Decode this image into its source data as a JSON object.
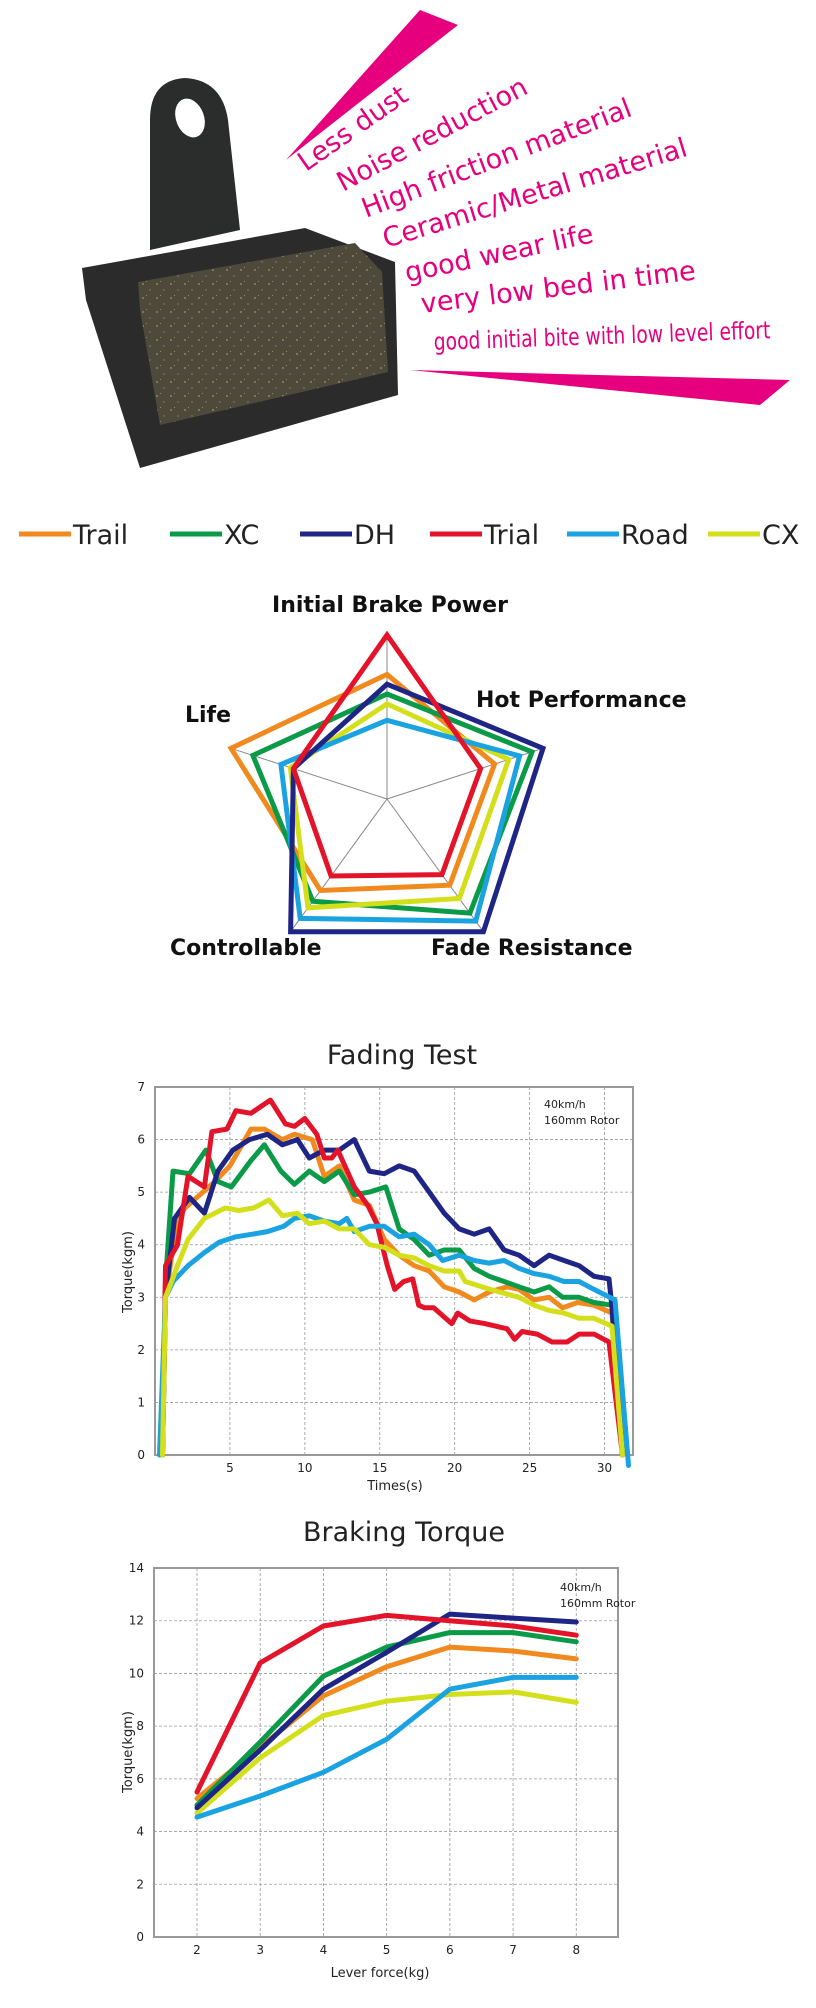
{
  "features": [
    "Less dust",
    "Noise reduction",
    "High friction material",
    "Ceramic/Metal material",
    "good wear life",
    "very low bed in time",
    "good initial bite with low level effort"
  ],
  "accent_color": "#e6007e",
  "legend": [
    {
      "name": "Trail",
      "color": "#f08a1e"
    },
    {
      "name": "XC",
      "color": "#0a9a48"
    },
    {
      "name": "DH",
      "color": "#1e2585"
    },
    {
      "name": "Trial",
      "color": "#e3132a"
    },
    {
      "name": "Road",
      "color": "#1aa3e0"
    },
    {
      "name": "CX",
      "color": "#d4df1c"
    }
  ],
  "chart_data": [
    {
      "type": "radar",
      "axes": [
        "Initial Brake Power",
        "Hot Performance",
        "Fade Resistance",
        "Controllable",
        "Life"
      ],
      "range": [
        0,
        1
      ],
      "series": [
        {
          "name": "Trail",
          "values": [
            0.76,
            0.69,
            0.65,
            0.69,
            1.0
          ]
        },
        {
          "name": "XC",
          "values": [
            0.64,
            0.93,
            0.86,
            0.77,
            0.86
          ]
        },
        {
          "name": "DH",
          "values": [
            0.7,
            1.0,
            1.0,
            1.0,
            0.6
          ]
        },
        {
          "name": "Trial",
          "values": [
            1.0,
            0.6,
            0.57,
            0.58,
            0.6
          ]
        },
        {
          "name": "Road",
          "values": [
            0.48,
            0.85,
            0.92,
            0.9,
            0.68
          ]
        },
        {
          "name": "CX",
          "values": [
            0.58,
            0.78,
            0.75,
            0.82,
            0.62
          ]
        }
      ]
    },
    {
      "type": "line",
      "title": "Fading Test",
      "xlabel": "Times(s)",
      "ylabel": "Torque(kgm)",
      "annotation": [
        "40km/h",
        "160mm Rotor"
      ],
      "xlim": [
        0,
        31.9
      ],
      "ylim": [
        0,
        7
      ],
      "xticks": [
        5,
        10,
        15,
        20,
        25,
        30
      ],
      "yticks": [
        0,
        1,
        2,
        3,
        4,
        5,
        6,
        7
      ],
      "grid": true,
      "series": [
        {
          "name": "Trail",
          "points": [
            [
              0.5,
              0
            ],
            [
              0.7,
              3
            ],
            [
              1.5,
              4.5
            ],
            [
              2,
              4.7
            ],
            [
              3.4,
              5.05
            ],
            [
              4,
              5.2
            ],
            [
              5,
              5.5
            ],
            [
              6.4,
              6.2
            ],
            [
              7.3,
              6.2
            ],
            [
              8.5,
              6.0
            ],
            [
              9.3,
              6.1
            ],
            [
              10.5,
              6.0
            ],
            [
              11.3,
              5.3
            ],
            [
              12.3,
              5.5
            ],
            [
              13.3,
              4.85
            ],
            [
              14.3,
              4.75
            ],
            [
              15.3,
              4.1
            ],
            [
              16.3,
              3.8
            ],
            [
              17.3,
              3.6
            ],
            [
              18.3,
              3.5
            ],
            [
              19.3,
              3.2
            ],
            [
              20.3,
              3.1
            ],
            [
              21.3,
              2.95
            ],
            [
              22.3,
              3.1
            ],
            [
              23.5,
              3.2
            ],
            [
              24.3,
              3.15
            ],
            [
              25.3,
              2.95
            ],
            [
              26.3,
              3.0
            ],
            [
              27.2,
              2.8
            ],
            [
              28.2,
              2.9
            ],
            [
              29.3,
              2.85
            ],
            [
              30.5,
              2.7
            ],
            [
              31.2,
              0
            ]
          ]
        },
        {
          "name": "XC",
          "points": [
            [
              0.5,
              0
            ],
            [
              0.7,
              3.3
            ],
            [
              1.2,
              5.4
            ],
            [
              2.3,
              5.35
            ],
            [
              3.4,
              5.8
            ],
            [
              4.2,
              5.2
            ],
            [
              5.1,
              5.1
            ],
            [
              6.4,
              5.6
            ],
            [
              7.3,
              5.9
            ],
            [
              8.4,
              5.4
            ],
            [
              9.3,
              5.15
            ],
            [
              10.3,
              5.4
            ],
            [
              11.3,
              5.2
            ],
            [
              12.3,
              5.4
            ],
            [
              13.3,
              4.95
            ],
            [
              14.3,
              5.0
            ],
            [
              15.4,
              5.1
            ],
            [
              16.3,
              4.3
            ],
            [
              17.3,
              4.1
            ],
            [
              18.3,
              3.8
            ],
            [
              19.3,
              3.9
            ],
            [
              20.3,
              3.9
            ],
            [
              21.3,
              3.55
            ],
            [
              22.3,
              3.4
            ],
            [
              23.3,
              3.3
            ],
            [
              24.3,
              3.2
            ],
            [
              25.3,
              3.1
            ],
            [
              26.3,
              3.2
            ],
            [
              27.2,
              3.0
            ],
            [
              28.3,
              3.0
            ],
            [
              29.3,
              2.9
            ],
            [
              30.5,
              2.85
            ],
            [
              31.2,
              0
            ]
          ]
        },
        {
          "name": "DH",
          "points": [
            [
              0.5,
              0
            ],
            [
              0.7,
              3.0
            ],
            [
              1.3,
              4.5
            ],
            [
              2.3,
              4.9
            ],
            [
              3.3,
              4.6
            ],
            [
              4.2,
              5.4
            ],
            [
              5.2,
              5.8
            ],
            [
              6.3,
              6.0
            ],
            [
              7.5,
              6.1
            ],
            [
              8.5,
              5.9
            ],
            [
              9.5,
              6.0
            ],
            [
              10.3,
              5.65
            ],
            [
              11.3,
              5.8
            ],
            [
              12.3,
              5.8
            ],
            [
              13.3,
              6.0
            ],
            [
              14.3,
              5.4
            ],
            [
              15.3,
              5.35
            ],
            [
              16.3,
              5.5
            ],
            [
              17.3,
              5.4
            ],
            [
              18.3,
              5.0
            ],
            [
              19.3,
              4.6
            ],
            [
              20.3,
              4.3
            ],
            [
              21.3,
              4.2
            ],
            [
              22.3,
              4.3
            ],
            [
              23.3,
              3.9
            ],
            [
              24.3,
              3.8
            ],
            [
              25.3,
              3.6
            ],
            [
              26.3,
              3.8
            ],
            [
              27.3,
              3.7
            ],
            [
              28.3,
              3.6
            ],
            [
              29.3,
              3.4
            ],
            [
              30.3,
              3.35
            ],
            [
              30.5,
              2.8
            ],
            [
              31.2,
              0
            ]
          ]
        },
        {
          "name": "Trial",
          "points": [
            [
              0.5,
              0
            ],
            [
              0.7,
              3.6
            ],
            [
              1.5,
              4.0
            ],
            [
              2.2,
              5.3
            ],
            [
              3.3,
              5.1
            ],
            [
              3.8,
              6.15
            ],
            [
              4.8,
              6.2
            ],
            [
              5.4,
              6.55
            ],
            [
              6.4,
              6.5
            ],
            [
              7.7,
              6.75
            ],
            [
              8.7,
              6.3
            ],
            [
              9.3,
              6.25
            ],
            [
              10.0,
              6.4
            ],
            [
              10.8,
              6.1
            ],
            [
              11.3,
              5.65
            ],
            [
              11.8,
              5.65
            ],
            [
              12.2,
              5.8
            ],
            [
              13.3,
              5.1
            ],
            [
              14.2,
              4.75
            ],
            [
              14.8,
              4.4
            ],
            [
              15.5,
              3.6
            ],
            [
              16,
              3.15
            ],
            [
              16.6,
              3.3
            ],
            [
              17.2,
              3.35
            ],
            [
              17.6,
              2.85
            ],
            [
              18,
              2.8
            ],
            [
              18.6,
              2.8
            ],
            [
              19.8,
              2.5
            ],
            [
              20.2,
              2.7
            ],
            [
              21,
              2.55
            ],
            [
              22,
              2.5
            ],
            [
              23.5,
              2.4
            ],
            [
              24,
              2.2
            ],
            [
              24.5,
              2.35
            ],
            [
              25.5,
              2.3
            ],
            [
              26.5,
              2.15
            ],
            [
              27.5,
              2.15
            ],
            [
              28.3,
              2.3
            ],
            [
              29.3,
              2.3
            ],
            [
              30.3,
              2.15
            ],
            [
              31.2,
              0
            ]
          ]
        },
        {
          "name": "Road",
          "points": [
            [
              0.3,
              0
            ],
            [
              0.7,
              3.0
            ],
            [
              1.2,
              3.3
            ],
            [
              2.2,
              3.6
            ],
            [
              3.3,
              3.85
            ],
            [
              4.3,
              4.05
            ],
            [
              5.4,
              4.15
            ],
            [
              6.5,
              4.2
            ],
            [
              7.5,
              4.25
            ],
            [
              8.6,
              4.35
            ],
            [
              9.3,
              4.5
            ],
            [
              10.3,
              4.55
            ],
            [
              11.3,
              4.45
            ],
            [
              12.3,
              4.4
            ],
            [
              12.8,
              4.5
            ],
            [
              13.3,
              4.25
            ],
            [
              14.3,
              4.35
            ],
            [
              15.3,
              4.35
            ],
            [
              16.3,
              4.15
            ],
            [
              17.3,
              4.2
            ],
            [
              18.3,
              4.0
            ],
            [
              19.2,
              3.7
            ],
            [
              20.3,
              3.8
            ],
            [
              21.3,
              3.7
            ],
            [
              22.3,
              3.65
            ],
            [
              23.3,
              3.7
            ],
            [
              24.3,
              3.55
            ],
            [
              25.3,
              3.45
            ],
            [
              26.3,
              3.4
            ],
            [
              27.3,
              3.3
            ],
            [
              28.3,
              3.3
            ],
            [
              29.3,
              3.15
            ],
            [
              30.7,
              2.95
            ],
            [
              31.6,
              -0.2
            ]
          ]
        },
        {
          "name": "CX",
          "points": [
            [
              0.5,
              0
            ],
            [
              0.7,
              3.0
            ],
            [
              1.5,
              3.6
            ],
            [
              2.2,
              4.1
            ],
            [
              3.3,
              4.5
            ],
            [
              4.7,
              4.7
            ],
            [
              5.6,
              4.65
            ],
            [
              6.6,
              4.7
            ],
            [
              7.6,
              4.85
            ],
            [
              8.5,
              4.55
            ],
            [
              9.5,
              4.6
            ],
            [
              10.3,
              4.4
            ],
            [
              11.3,
              4.45
            ],
            [
              12.3,
              4.3
            ],
            [
              13.3,
              4.3
            ],
            [
              14.3,
              4.0
            ],
            [
              15.3,
              3.95
            ],
            [
              16.3,
              3.8
            ],
            [
              17.3,
              3.75
            ],
            [
              18.3,
              3.6
            ],
            [
              19.3,
              3.5
            ],
            [
              20.3,
              3.5
            ],
            [
              20.7,
              3.3
            ],
            [
              21.8,
              3.2
            ],
            [
              23,
              3.1
            ],
            [
              24.3,
              3.0
            ],
            [
              25.3,
              2.85
            ],
            [
              26.3,
              2.75
            ],
            [
              27.3,
              2.7
            ],
            [
              28.3,
              2.6
            ],
            [
              29.3,
              2.6
            ],
            [
              30.5,
              2.45
            ],
            [
              31.2,
              0
            ]
          ]
        }
      ]
    },
    {
      "type": "line",
      "title": "Braking Torque",
      "xlabel": "Lever force(kg)",
      "ylabel": "Torque(kgm)",
      "annotation": [
        "40km/h",
        "160mm Rotor"
      ],
      "xlim": [
        1.32,
        8.66
      ],
      "ylim": [
        0,
        14
      ],
      "xticks": [
        2,
        3,
        4,
        5,
        6,
        7,
        8
      ],
      "yticks": [
        0,
        2,
        4,
        6,
        8,
        10,
        12,
        14
      ],
      "grid": true,
      "x": [
        2,
        3,
        4,
        5,
        6,
        7,
        8
      ],
      "series": [
        {
          "name": "Trail",
          "values": [
            5.25,
            7.2,
            9.15,
            10.25,
            11.0,
            10.85,
            10.55
          ]
        },
        {
          "name": "XC",
          "values": [
            5.0,
            7.4,
            9.9,
            11.0,
            11.55,
            11.55,
            11.2
          ]
        },
        {
          "name": "CX",
          "values": [
            4.7,
            6.8,
            8.4,
            8.95,
            9.2,
            9.3,
            8.9
          ]
        },
        {
          "name": "Road",
          "values": [
            4.55,
            5.35,
            6.25,
            7.5,
            9.4,
            9.85,
            9.85
          ]
        },
        {
          "name": "DH",
          "values": [
            4.9,
            7.1,
            9.4,
            10.8,
            12.25,
            12.1,
            11.95
          ]
        },
        {
          "name": "Trial",
          "values": [
            5.5,
            10.4,
            11.8,
            12.2,
            12.0,
            11.8,
            11.45
          ]
        }
      ]
    }
  ]
}
